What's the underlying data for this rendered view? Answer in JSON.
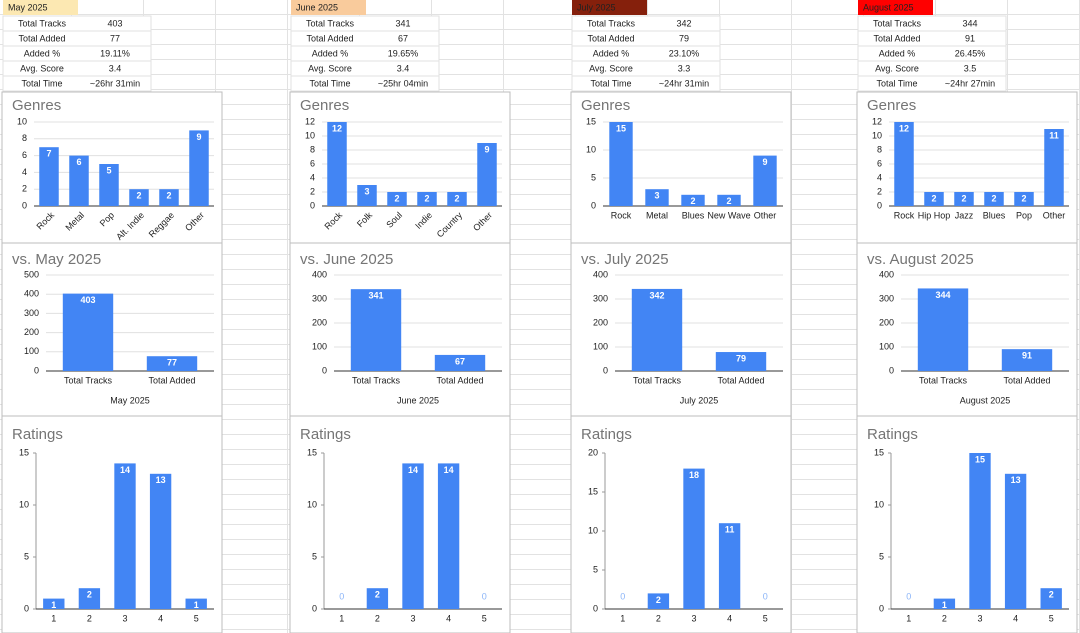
{
  "months": [
    {
      "label": "May 2025",
      "header_color": "#fce8b2",
      "stats": [
        [
          "Total Tracks",
          "403"
        ],
        [
          "Total Added",
          "77"
        ],
        [
          "Added %",
          "19.11%"
        ],
        [
          "Avg. Score",
          "3.4"
        ],
        [
          "Total Time",
          "~26hr 31min"
        ]
      ],
      "genres": {
        "type": "bar",
        "title": "Genres",
        "categories": [
          "Rock",
          "Metal",
          "Pop",
          "Alt. Indie",
          "Reggae",
          "Other"
        ],
        "values": [
          7,
          6,
          5,
          2,
          2,
          9
        ],
        "color": "#4285f4",
        "ylim": [
          0,
          10
        ],
        "yticks": [
          0,
          2,
          4,
          6,
          8,
          10
        ],
        "grid": true,
        "rotated_labels": true
      },
      "comparison": {
        "type": "bar",
        "title": "vs. May 2025",
        "categories": [
          "Total Tracks",
          "Total Added"
        ],
        "values": [
          403,
          77
        ],
        "x_label": "May 2025",
        "color": "#4285f4",
        "ylim": [
          0,
          500
        ],
        "yticks": [
          0,
          100,
          200,
          300,
          400,
          500
        ],
        "grid": true,
        "rotated_labels": false
      },
      "ratings": {
        "type": "bar",
        "title": "Ratings",
        "categories": [
          "1",
          "2",
          "3",
          "4",
          "5"
        ],
        "values": [
          1,
          2,
          14,
          13,
          1
        ],
        "color": "#4285f4",
        "ylim": [
          0,
          15
        ],
        "yticks": [
          0,
          5,
          10,
          15
        ],
        "grid": false,
        "rotated_labels": false
      }
    },
    {
      "label": "June 2025",
      "header_color": "#f9cb9c",
      "stats": [
        [
          "Total Tracks",
          "341"
        ],
        [
          "Total Added",
          "67"
        ],
        [
          "Added %",
          "19.65%"
        ],
        [
          "Avg. Score",
          "3.4"
        ],
        [
          "Total Time",
          "~25hr 04min"
        ]
      ],
      "genres": {
        "type": "bar",
        "title": "Genres",
        "categories": [
          "Rock",
          "Folk",
          "Soul",
          "Indie",
          "Country",
          "Other"
        ],
        "values": [
          12,
          3,
          2,
          2,
          2,
          9
        ],
        "color": "#4285f4",
        "ylim": [
          0,
          12
        ],
        "yticks": [
          0,
          2,
          4,
          6,
          8,
          10,
          12
        ],
        "grid": true,
        "rotated_labels": true
      },
      "comparison": {
        "type": "bar",
        "title": "vs. June 2025",
        "categories": [
          "Total Tracks",
          "Total Added"
        ],
        "values": [
          341,
          67
        ],
        "x_label": "June 2025",
        "color": "#4285f4",
        "ylim": [
          0,
          400
        ],
        "yticks": [
          0,
          100,
          200,
          300,
          400
        ],
        "grid": true,
        "rotated_labels": false
      },
      "ratings": {
        "type": "bar",
        "title": "Ratings",
        "categories": [
          "1",
          "2",
          "3",
          "4",
          "5"
        ],
        "values": [
          0,
          2,
          14,
          14,
          0
        ],
        "color": "#4285f4",
        "ylim": [
          0,
          15
        ],
        "yticks": [
          0,
          5,
          10,
          15
        ],
        "grid": false,
        "rotated_labels": false
      }
    },
    {
      "label": "July 2025",
      "header_color": "#85200c",
      "stats": [
        [
          "Total Tracks",
          "342"
        ],
        [
          "Total Added",
          "79"
        ],
        [
          "Added %",
          "23.10%"
        ],
        [
          "Avg. Score",
          "3.3"
        ],
        [
          "Total Time",
          "~24hr 31min"
        ]
      ],
      "genres": {
        "type": "bar",
        "title": "Genres",
        "categories": [
          "Rock",
          "Metal",
          "Blues",
          "New Wave",
          "Other"
        ],
        "values": [
          15,
          3,
          2,
          2,
          9
        ],
        "color": "#4285f4",
        "ylim": [
          0,
          15
        ],
        "yticks": [
          0,
          5,
          10,
          15
        ],
        "grid": true,
        "rotated_labels": false
      },
      "comparison": {
        "type": "bar",
        "title": "vs. July 2025",
        "categories": [
          "Total Tracks",
          "Total Added"
        ],
        "values": [
          342,
          79
        ],
        "x_label": "July 2025",
        "color": "#4285f4",
        "ylim": [
          0,
          400
        ],
        "yticks": [
          0,
          100,
          200,
          300,
          400
        ],
        "grid": true,
        "rotated_labels": false
      },
      "ratings": {
        "type": "bar",
        "title": "Ratings",
        "categories": [
          "1",
          "2",
          "3",
          "4",
          "5"
        ],
        "values": [
          0,
          2,
          18,
          11,
          0
        ],
        "color": "#4285f4",
        "ylim": [
          0,
          20
        ],
        "yticks": [
          0,
          5,
          10,
          15,
          20
        ],
        "grid": false,
        "rotated_labels": false
      }
    },
    {
      "label": "August 2025",
      "header_color": "#ff0000",
      "stats": [
        [
          "Total Tracks",
          "344"
        ],
        [
          "Total Added",
          "91"
        ],
        [
          "Added %",
          "26.45%"
        ],
        [
          "Avg. Score",
          "3.5"
        ],
        [
          "Total Time",
          "~24hr 27min"
        ]
      ],
      "genres": {
        "type": "bar",
        "title": "Genres",
        "categories": [
          "Rock",
          "Hip Hop",
          "Jazz",
          "Blues",
          "Pop",
          "Other"
        ],
        "values": [
          12,
          2,
          2,
          2,
          2,
          11
        ],
        "color": "#4285f4",
        "ylim": [
          0,
          12
        ],
        "yticks": [
          0,
          2,
          4,
          6,
          8,
          10,
          12
        ],
        "grid": true,
        "rotated_labels": false
      },
      "comparison": {
        "type": "bar",
        "title": "vs. August 2025",
        "categories": [
          "Total Tracks",
          "Total Added"
        ],
        "values": [
          344,
          91
        ],
        "x_label": "August 2025",
        "color": "#4285f4",
        "ylim": [
          0,
          400
        ],
        "yticks": [
          0,
          100,
          200,
          300,
          400
        ],
        "grid": true,
        "rotated_labels": false
      },
      "ratings": {
        "type": "bar",
        "title": "Ratings",
        "categories": [
          "1",
          "2",
          "3",
          "4",
          "5"
        ],
        "values": [
          0,
          1,
          15,
          13,
          2
        ],
        "color": "#4285f4",
        "ylim": [
          0,
          15
        ],
        "yticks": [
          0,
          5,
          10,
          15
        ],
        "grid": false,
        "rotated_labels": false
      }
    }
  ]
}
